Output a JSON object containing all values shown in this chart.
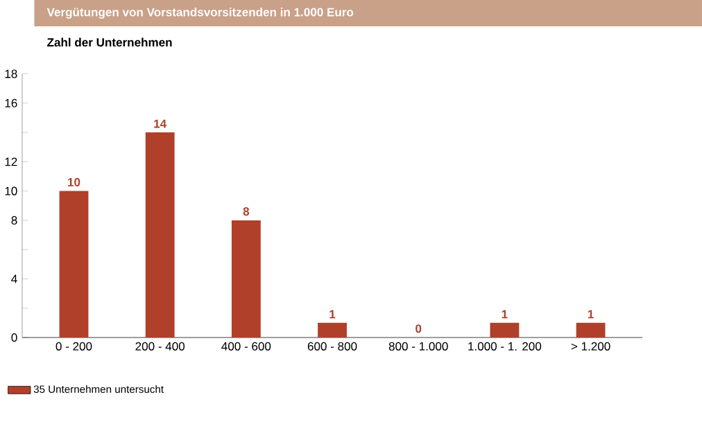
{
  "chart_data": {
    "type": "bar",
    "title": "Vergütungen von Vorstandsvorsitzenden in 1.000 Euro",
    "ylabel": "Zahl der Unternehmen",
    "categories": [
      "0 - 200",
      "200 - 400",
      "400 - 600",
      "600 - 800",
      "800 - 1.000",
      "1.000 - 1. 200",
      "> 1.200"
    ],
    "series": [
      {
        "name": "35 Unternehmen untersucht",
        "color": "#b0402a",
        "values": [
          10,
          14,
          8,
          1,
          0,
          1,
          1
        ]
      }
    ],
    "ylim": [
      0,
      18
    ],
    "yticks": [
      0,
      {
        "value": 2,
        "label": null
      },
      4,
      {
        "value": 6,
        "label": null
      },
      8,
      10,
      12,
      {
        "value": 14,
        "label": null
      },
      16,
      18
    ],
    "data_labels": true,
    "legend": "bottom left",
    "grid": false
  }
}
